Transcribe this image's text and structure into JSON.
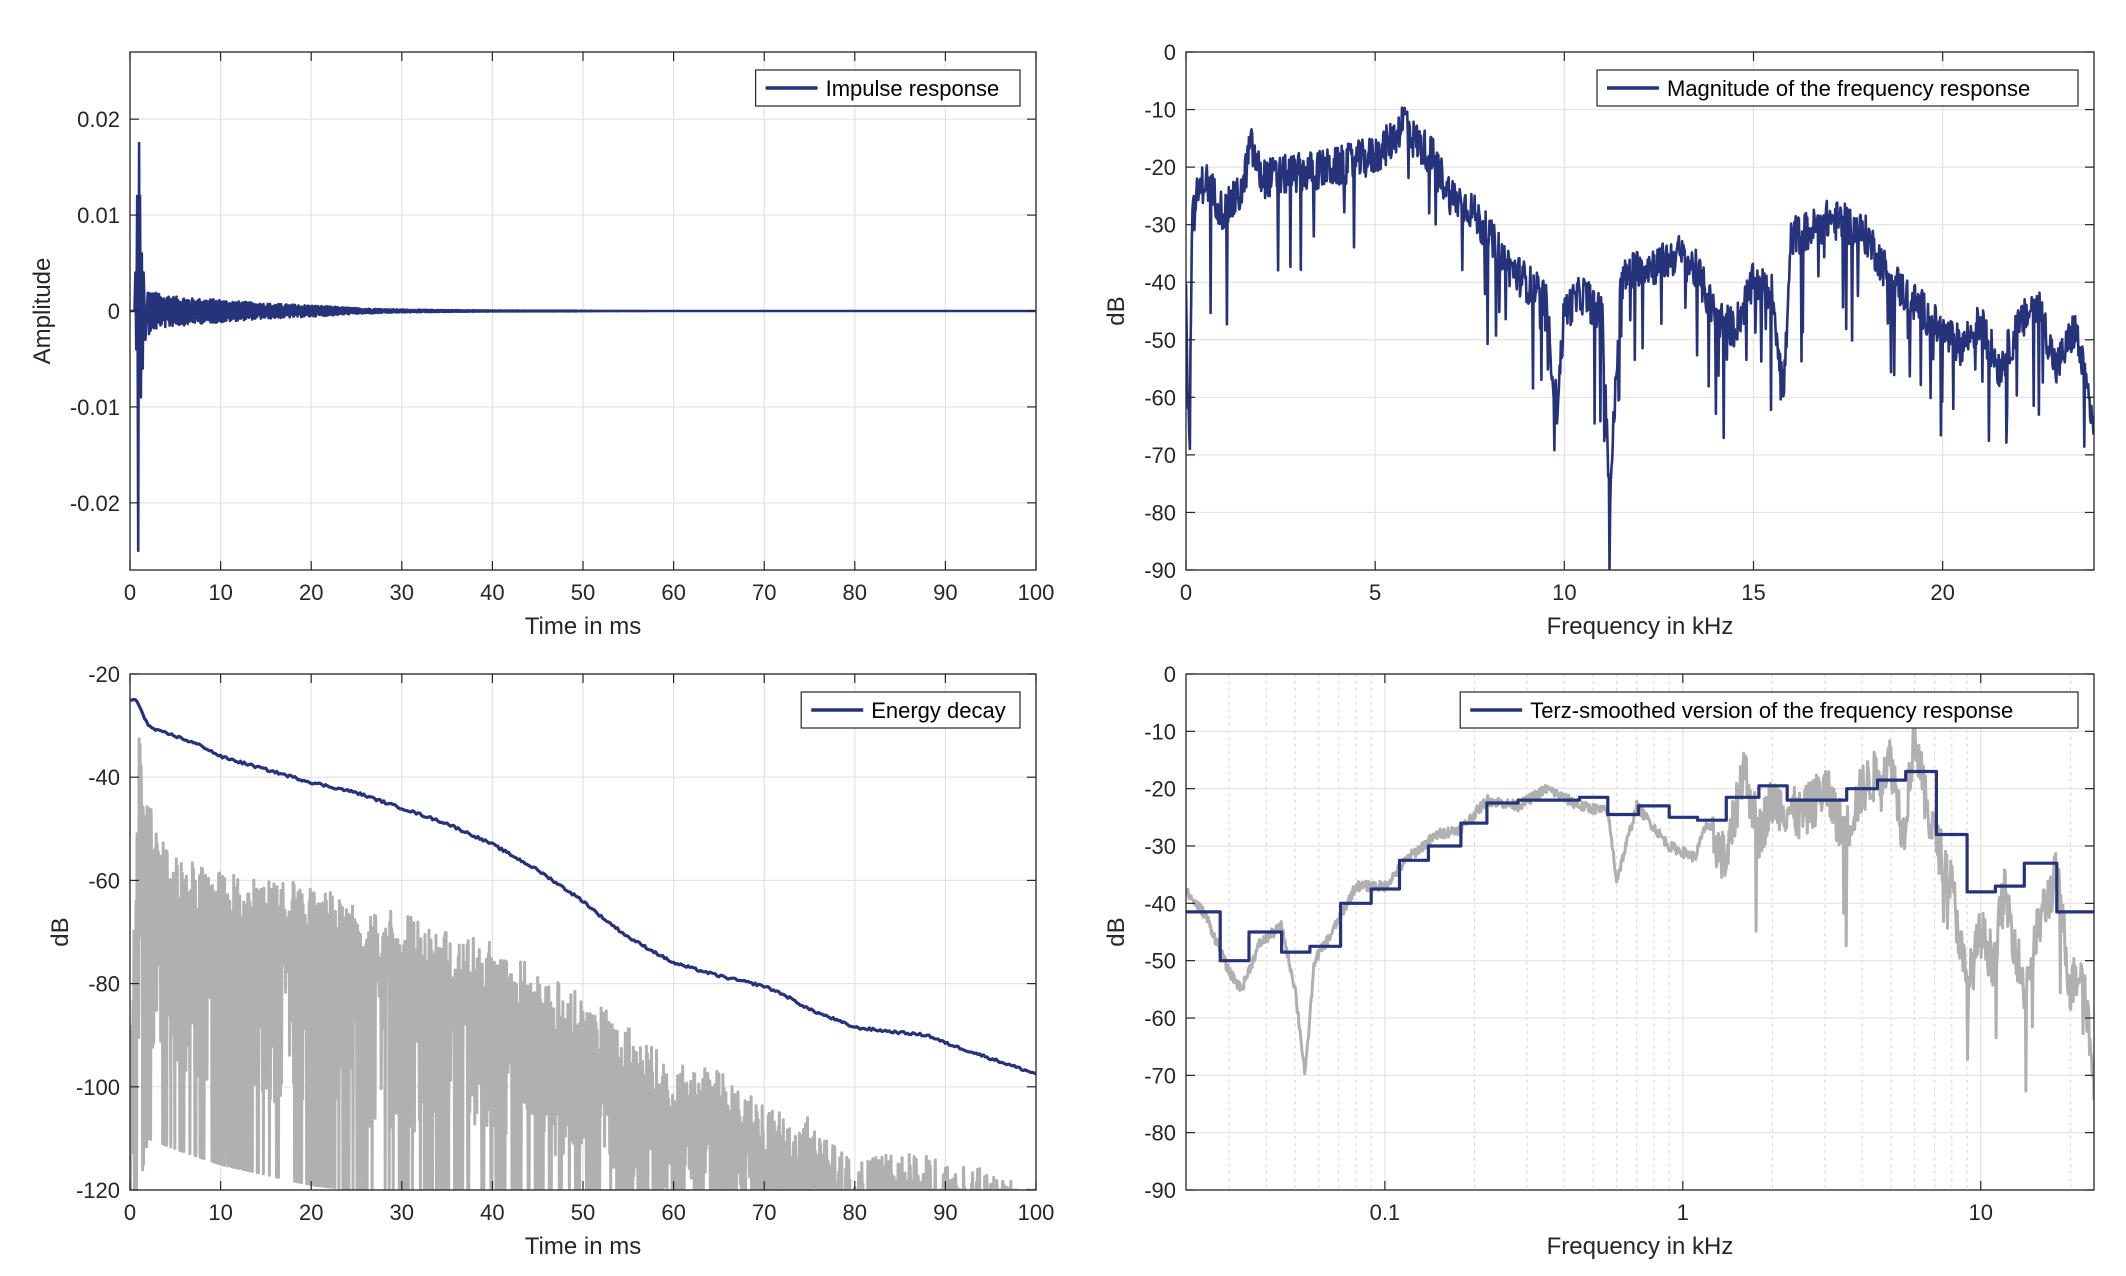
{
  "colors": {
    "series": "#26337a",
    "gray": "#b0b0b0",
    "grid": "#e3e3e3",
    "minorgrid": "#d6d6d6",
    "axis": "#262626"
  },
  "chart_data": [
    {
      "id": "impulse",
      "type": "line",
      "xlabel": "Time in ms",
      "ylabel": "Amplitude",
      "xlim": [
        0,
        100
      ],
      "ylim": [
        -0.027,
        0.027
      ],
      "xticks": [
        0,
        10,
        20,
        30,
        40,
        50,
        60,
        70,
        80,
        90,
        100
      ],
      "xtick_labels": [
        "0",
        "10",
        "20",
        "30",
        "40",
        "50",
        "60",
        "70",
        "80",
        "90",
        "100"
      ],
      "yticks": [
        0.02,
        0.01,
        0,
        -0.01,
        -0.02
      ],
      "ytick_labels": [
        "0.02",
        "0.01",
        "0",
        "-0.01",
        "-0.02"
      ],
      "grid": true,
      "legend_position": "top-right",
      "series": [
        {
          "name": "Impulse response",
          "color": "#26337a",
          "x": [
            0,
            0.5,
            0.6,
            0.7,
            0.8,
            0.9,
            1.0,
            1.05,
            1.1,
            1.2,
            1.3,
            1.4,
            1.5,
            1.7,
            2,
            2.5,
            3,
            3.5,
            4,
            5,
            6,
            7,
            8,
            10,
            12,
            15,
            20,
            25,
            30,
            40,
            50,
            60,
            80,
            100
          ],
          "y": [
            0,
            0,
            0.004,
            -0.004,
            0.012,
            -0.025,
            0.0175,
            -0.013,
            0.012,
            -0.009,
            0.006,
            -0.006,
            0.004,
            -0.003,
            0.0025,
            -0.002,
            0.002,
            -0.0015,
            0.0018,
            -0.0015,
            0.0015,
            -0.0013,
            0.0013,
            -0.0012,
            0.001,
            -0.0008,
            0.0006,
            -0.0003,
            0.00015,
            -5e-05,
            2e-05,
            0,
            0,
            0
          ]
        }
      ]
    },
    {
      "id": "magnitude",
      "type": "line",
      "xlabel": "Frequency in kHz",
      "ylabel": "dB",
      "xlim": [
        0,
        24
      ],
      "ylim": [
        -90,
        0
      ],
      "xticks": [
        0,
        5,
        10,
        15,
        20
      ],
      "xtick_labels": [
        "0",
        "5",
        "10",
        "15",
        "20"
      ],
      "yticks": [
        0,
        -10,
        -20,
        -30,
        -40,
        -50,
        -60,
        -70,
        -80,
        -90
      ],
      "ytick_labels": [
        "0",
        "-10",
        "-20",
        "-30",
        "-40",
        "-50",
        "-60",
        "-70",
        "-80",
        "-90"
      ],
      "grid": true,
      "legend_position": "top-right",
      "series": [
        {
          "name": "Magnitude of the frequency response",
          "color": "#26337a",
          "x": [
            0,
            0.05,
            0.1,
            0.15,
            0.3,
            0.5,
            1,
            1.5,
            1.7,
            2,
            3,
            4,
            5,
            5.5,
            5.8,
            6,
            6.5,
            7,
            7.5,
            8,
            8.5,
            9,
            9.5,
            9.8,
            10,
            10.5,
            11,
            11.2,
            11.5,
            12,
            12.5,
            13,
            13.5,
            14,
            14.5,
            15,
            15.5,
            15.8,
            16,
            16.5,
            17,
            17.5,
            18,
            18.5,
            19,
            19.5,
            20,
            20.5,
            21,
            21.5,
            22,
            22.5,
            23,
            23.5,
            24
          ],
          "y": [
            -40,
            -60,
            -69,
            -30,
            -25,
            -22,
            -28,
            -24,
            -16,
            -22,
            -21,
            -20,
            -18,
            -15,
            -11,
            -15,
            -18,
            -25,
            -27,
            -32,
            -37,
            -40,
            -43,
            -62,
            -45,
            -42,
            -46,
            -78,
            -40,
            -37,
            -37,
            -35,
            -38,
            -46,
            -48,
            -40,
            -42,
            -59,
            -32,
            -31,
            -29,
            -30,
            -32,
            -38,
            -42,
            -45,
            -49,
            -51,
            -47,
            -55,
            -48,
            -43,
            -55,
            -48,
            -65
          ]
        }
      ]
    },
    {
      "id": "energy-decay",
      "type": "line",
      "xlabel": "Time in ms",
      "ylabel": "dB",
      "xlim": [
        0,
        100
      ],
      "ylim": [
        -120,
        -20
      ],
      "xticks": [
        0,
        10,
        20,
        30,
        40,
        50,
        60,
        70,
        80,
        90,
        100
      ],
      "xtick_labels": [
        "0",
        "10",
        "20",
        "30",
        "40",
        "50",
        "60",
        "70",
        "80",
        "90",
        "100"
      ],
      "yticks": [
        -20,
        -40,
        -60,
        -80,
        -100,
        -120
      ],
      "ytick_labels": [
        "-20",
        "-40",
        "-60",
        "-80",
        "-100",
        "-120"
      ],
      "grid": true,
      "legend_position": "top-right",
      "series": [
        {
          "name": "Energy decay",
          "color": "#26337a",
          "x": [
            0,
            0.5,
            1,
            1.5,
            2,
            3,
            5,
            8,
            10,
            15,
            20,
            25,
            30,
            35,
            40,
            45,
            50,
            52,
            55,
            60,
            65,
            70,
            72,
            75,
            80,
            85,
            88,
            90,
            95,
            100
          ],
          "y": [
            -25,
            -25,
            -26,
            -28,
            -30,
            -31,
            -32,
            -34,
            -36,
            -38.5,
            -41,
            -43,
            -46,
            -49,
            -53,
            -58,
            -64,
            -67,
            -71,
            -76,
            -78.5,
            -80.5,
            -82,
            -85,
            -88.5,
            -89.5,
            -90,
            -91.5,
            -94.5,
            -97.5
          ]
        },
        {
          "name": "",
          "color": "#b0b0b0",
          "role": "envelope",
          "x": [
            0,
            1,
            2,
            5,
            10,
            15,
            20,
            25,
            30,
            35,
            40,
            45,
            50,
            55,
            60,
            65,
            70,
            75,
            80,
            85,
            90,
            95,
            100
          ],
          "top": [
            -95,
            -32,
            -44,
            -55,
            -58,
            -60,
            -60,
            -65,
            -66,
            -70,
            -72,
            -77,
            -82,
            -88,
            -95,
            -97,
            -103,
            -106,
            -115,
            -112,
            -114,
            -116,
            -119
          ],
          "bottom": [
            -120,
            -120,
            -110,
            -112,
            -115,
            -117,
            -119,
            -120,
            -120,
            -120,
            -120,
            -120,
            -120,
            -120,
            -120,
            -120,
            -120,
            -120,
            -120,
            -120,
            -120,
            -120,
            -120
          ]
        }
      ]
    },
    {
      "id": "terz",
      "type": "line",
      "xscale": "log",
      "xlabel": "Frequency in kHz",
      "ylabel": "dB",
      "xlim": [
        0.0215,
        24
      ],
      "ylim": [
        -90,
        0
      ],
      "xticks": [
        0.1,
        1,
        10
      ],
      "xtick_labels": [
        "0.1",
        "1",
        "10"
      ],
      "yticks": [
        0,
        -10,
        -20,
        -30,
        -40,
        -50,
        -60,
        -70,
        -80,
        -90
      ],
      "ytick_labels": [
        "0",
        "-10",
        "-20",
        "-30",
        "-40",
        "-50",
        "-60",
        "-70",
        "-80",
        "-90"
      ],
      "grid": true,
      "legend_position": "top-right",
      "series": [
        {
          "name": "Terz-smoothed version of the frequency response",
          "color": "#26337a",
          "x": [
            0.0215,
            0.028,
            0.035,
            0.045,
            0.056,
            0.071,
            0.09,
            0.112,
            0.14,
            0.18,
            0.22,
            0.28,
            0.35,
            0.45,
            0.56,
            0.71,
            0.9,
            1.12,
            1.4,
            1.8,
            2.24,
            2.8,
            3.55,
            4.5,
            5.6,
            7.1,
            9,
            11.2,
            14,
            18,
            24
          ],
          "y": [
            -41.5,
            -50,
            -45,
            -48.5,
            -47.5,
            -40,
            -37.5,
            -32.5,
            -30,
            -26,
            -22.5,
            -22,
            -22,
            -21.5,
            -24.5,
            -23,
            -25,
            -25.5,
            -21.5,
            -19.5,
            -22,
            -22,
            -20,
            -18.5,
            -17,
            -28,
            -38,
            -37,
            -33,
            -41.5,
            -41.5
          ]
        },
        {
          "name": "",
          "color": "#b0b0b0",
          "x": [
            0.0215,
            0.025,
            0.03,
            0.033,
            0.038,
            0.045,
            0.05,
            0.054,
            0.058,
            0.065,
            0.08,
            0.1,
            0.12,
            0.15,
            0.18,
            0.22,
            0.28,
            0.35,
            0.45,
            0.56,
            0.6,
            0.7,
            0.9,
            1.1,
            1.2,
            1.4,
            1.6,
            1.8,
            2,
            2.5,
            3,
            3.5,
            4,
            5,
            5.5,
            6,
            6.5,
            7,
            8,
            9,
            10,
            11,
            12,
            14,
            16,
            18,
            20,
            22,
            24
          ],
          "y": [
            -38,
            -42,
            -52,
            -55,
            -47,
            -44,
            -55,
            -70,
            -50,
            -46,
            -37,
            -37,
            -32,
            -28,
            -27,
            -22,
            -23,
            -20,
            -23,
            -24,
            -36,
            -23,
            -30,
            -32,
            -26,
            -33,
            -16,
            -28,
            -22,
            -25,
            -20,
            -28,
            -20,
            -15,
            -28,
            -10,
            -22,
            -28,
            -37,
            -55,
            -45,
            -50,
            -38,
            -55,
            -42,
            -35,
            -55,
            -50,
            -72
          ]
        }
      ]
    }
  ]
}
